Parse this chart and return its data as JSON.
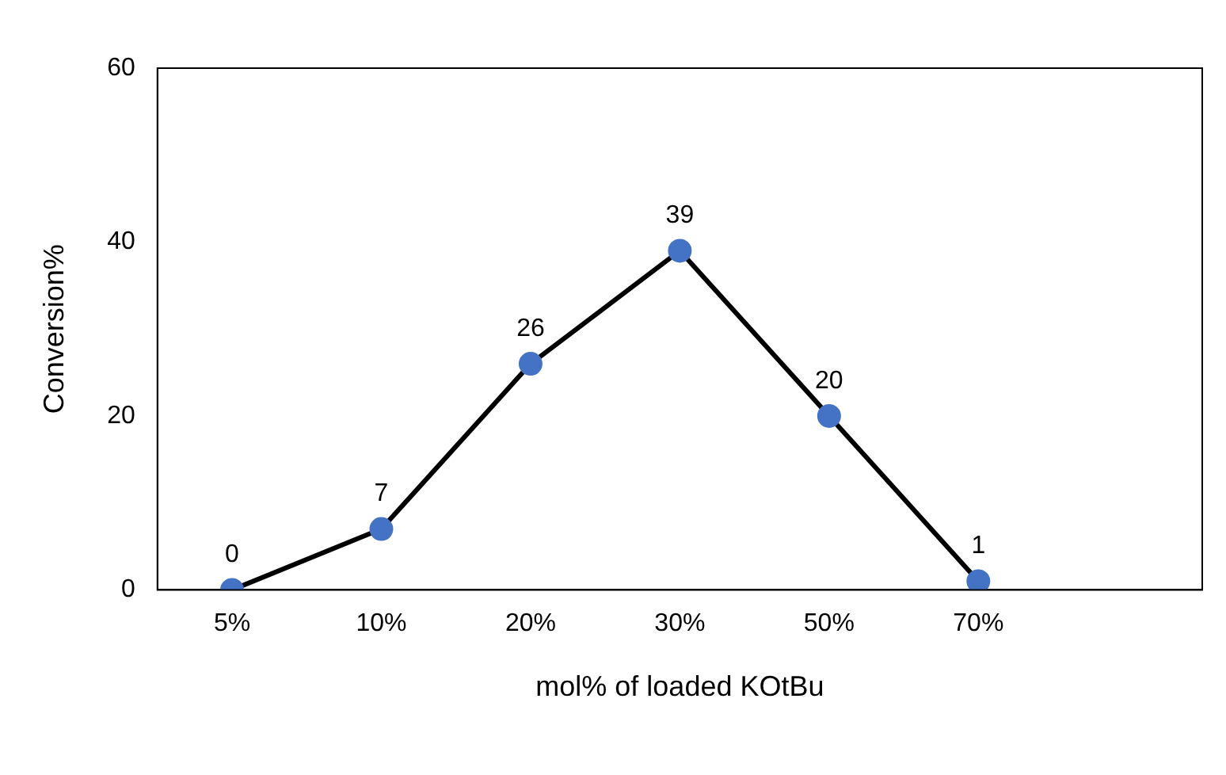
{
  "chart_data": {
    "type": "line",
    "xlabel": "mol% of loaded KOtBu",
    "ylabel": "Conversion%",
    "categories": [
      "5%",
      "10%",
      "20%",
      "30%",
      "50%",
      "70%",
      null
    ],
    "series": [
      {
        "color": "#000000",
        "values": [
          0,
          7,
          26,
          39,
          20,
          1,
          null
        ]
      }
    ],
    "marker": "circle",
    "ylim": [
      0,
      60
    ],
    "yticks": [
      0,
      20,
      40,
      60
    ],
    "grid": false,
    "legend": false,
    "data_labels": true
  }
}
